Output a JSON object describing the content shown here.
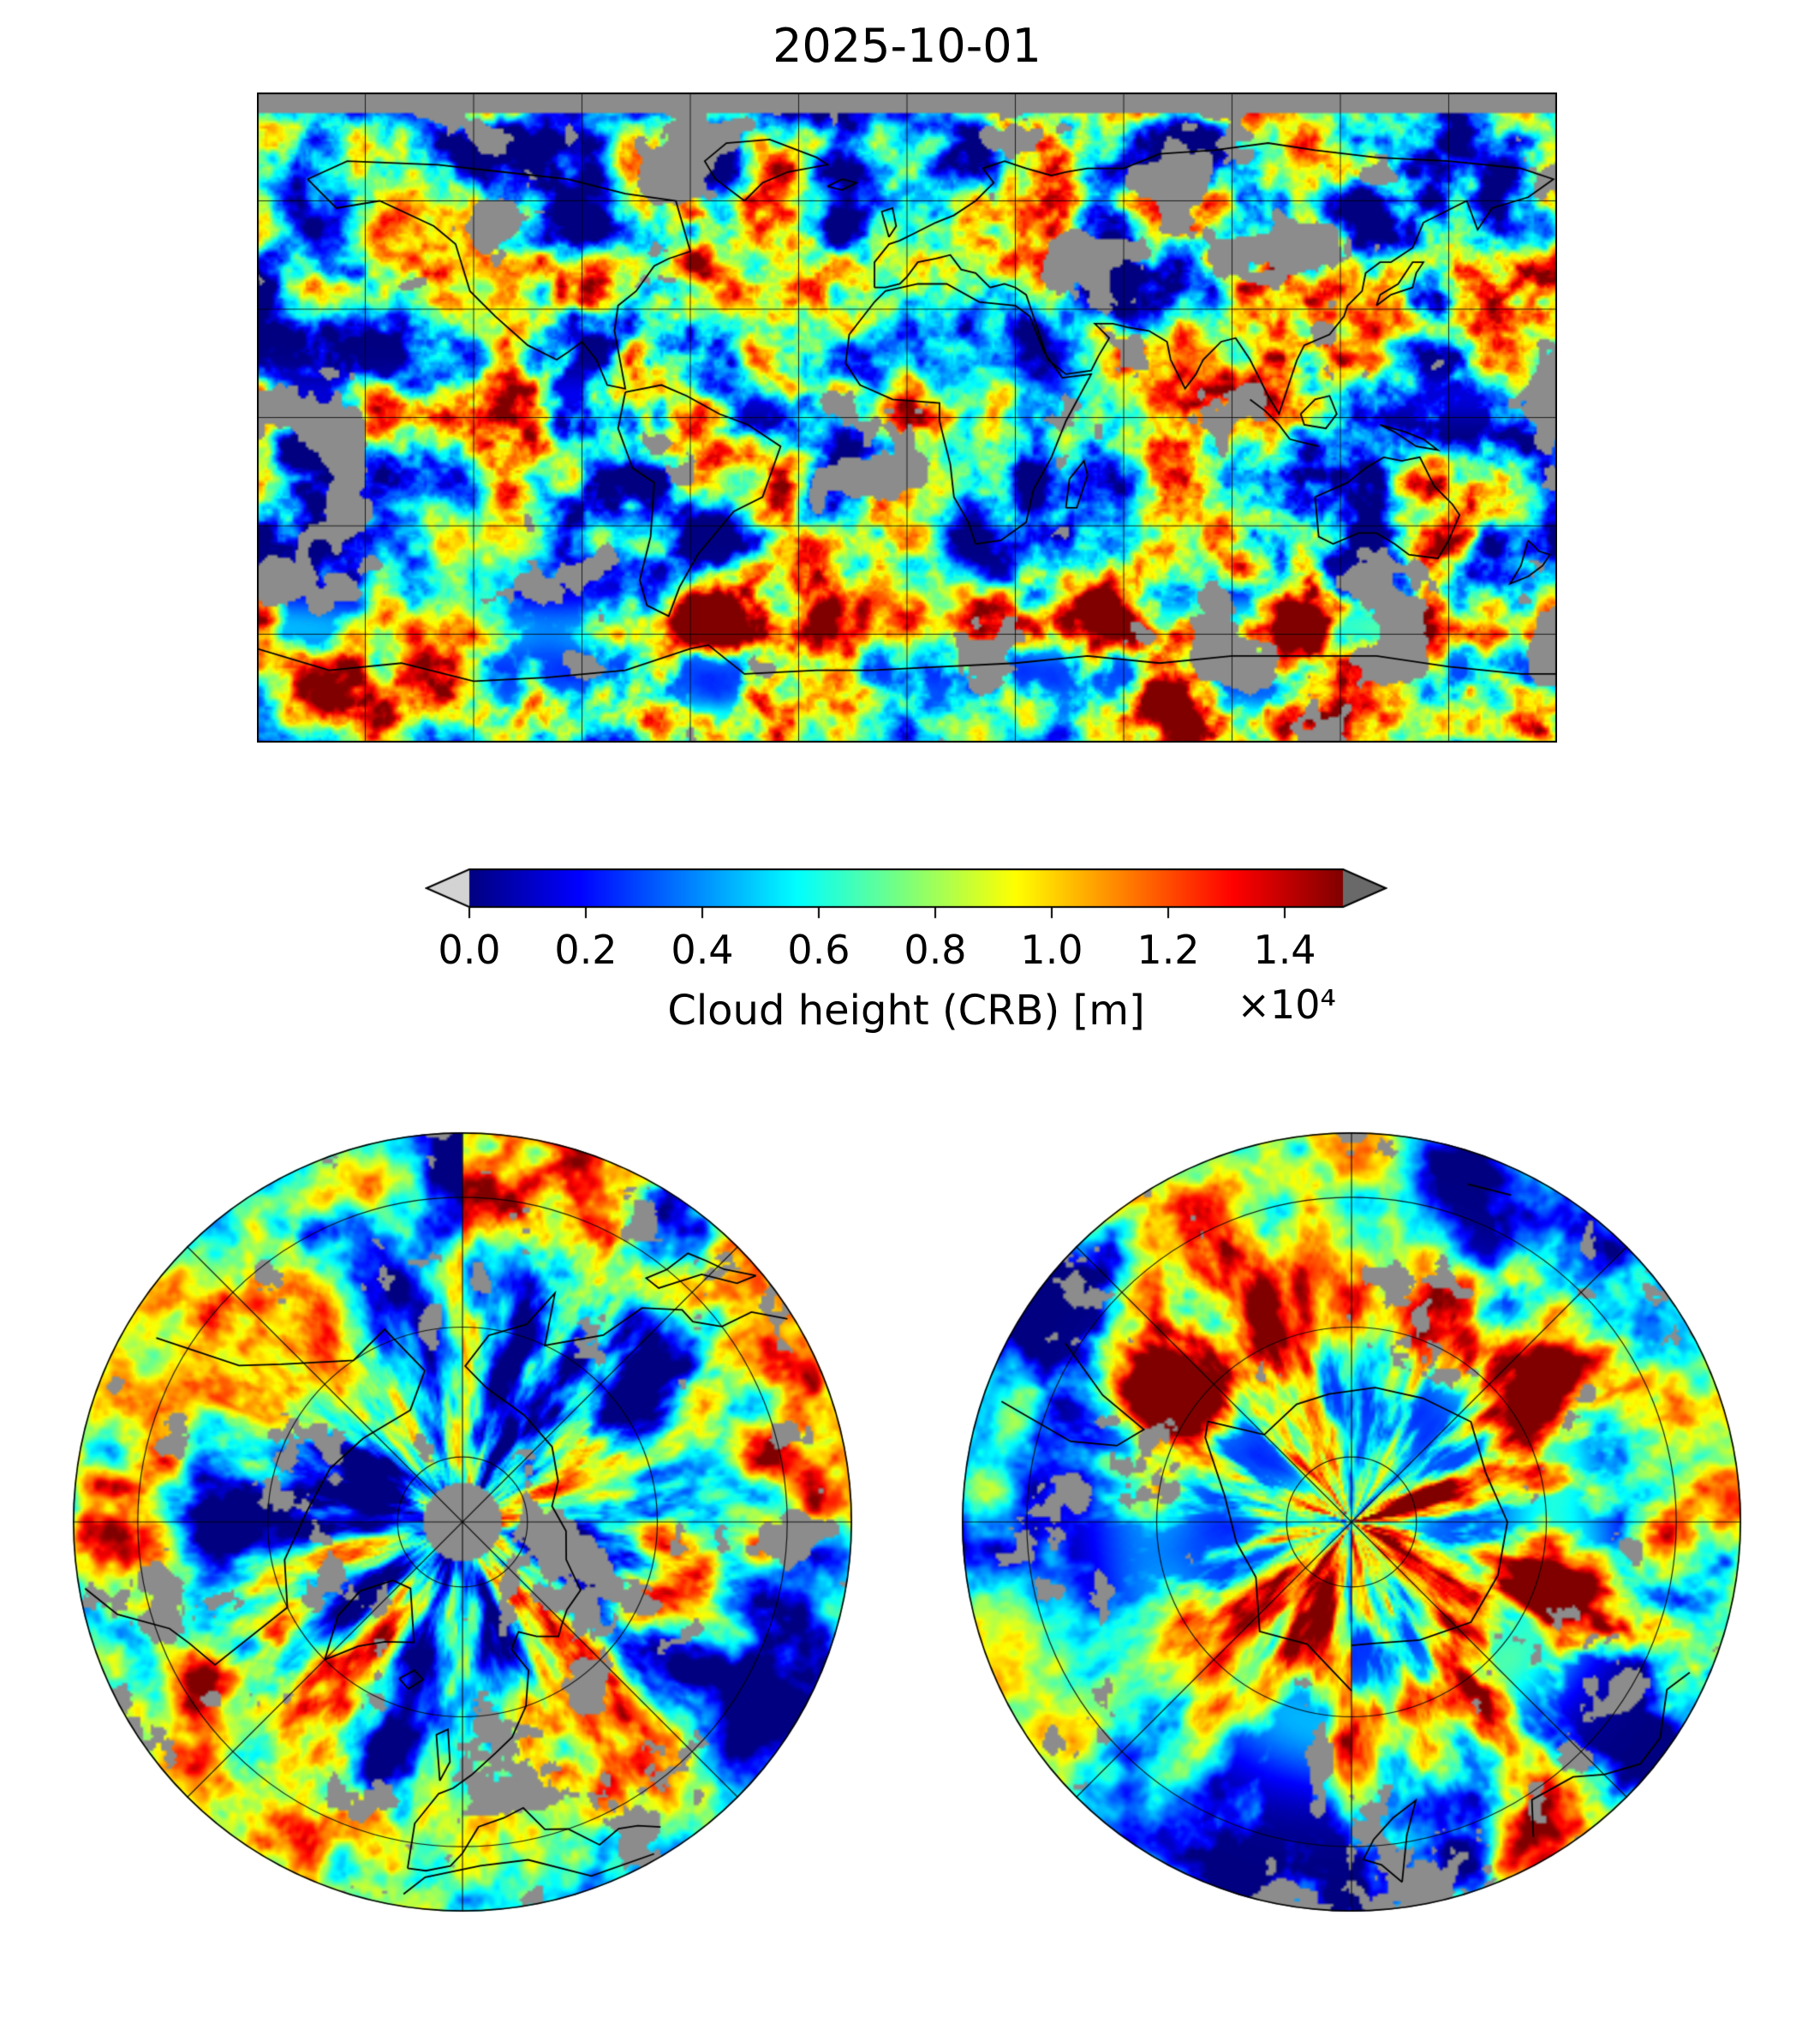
{
  "title": "2025-10-01",
  "chart_data": {
    "type": "heatmap",
    "title": "2025-10-01",
    "variable": "Cloud height (CRB)",
    "units": "m",
    "scale_factor": 10000,
    "value_range": [
      0,
      15000
    ],
    "missing_color": "#8c8c8c",
    "grid": true,
    "colormap": {
      "name": "jet",
      "stops": [
        [
          0,
          "#000080"
        ],
        [
          0.125,
          "#0000ff"
        ],
        [
          0.375,
          "#00ffff"
        ],
        [
          0.5,
          "#7dff7a"
        ],
        [
          0.625,
          "#ffff00"
        ],
        [
          0.875,
          "#ff0000"
        ],
        [
          1,
          "#800000"
        ]
      ]
    },
    "colorbar": {
      "label": "Cloud height (CRB) [m]",
      "ticks": [
        0.0,
        0.2,
        0.4,
        0.6,
        0.8,
        1.0,
        1.2,
        1.4
      ],
      "tick_labels": [
        "0.0",
        "0.2",
        "0.4",
        "0.6",
        "0.8",
        "1.0",
        "1.2",
        "1.4"
      ],
      "offset_text": "×10⁴",
      "extend": "both",
      "under_color": "#d3d3d3",
      "over_color": "#696969"
    },
    "panels": [
      {
        "name": "global-map",
        "projection": "equirectangular",
        "lon_range": [
          -180,
          180
        ],
        "lat_range": [
          -90,
          90
        ],
        "grid_spacing_deg": 30
      },
      {
        "name": "north-polar-map",
        "projection": "north-polar-azimuthal",
        "lat_edge": 30,
        "grid_lat_circles": [
          40,
          60,
          80
        ],
        "grid_lon_spokes_deg": 45
      },
      {
        "name": "south-polar-map",
        "projection": "south-polar-azimuthal",
        "lat_edge": -30,
        "grid_lat_circles": [
          -40,
          -60,
          -80
        ],
        "grid_lon_spokes_deg": 45
      }
    ],
    "basemap": {
      "coastlines": [
        [
          [
            -166,
            66
          ],
          [
            -158,
            58
          ],
          [
            -146,
            60
          ],
          [
            -131,
            53
          ],
          [
            -125,
            48
          ],
          [
            -121,
            35
          ],
          [
            -114,
            28
          ],
          [
            -105,
            20
          ],
          [
            -97,
            16
          ],
          [
            -94,
            18
          ],
          [
            -90,
            21
          ],
          [
            -86,
            16
          ],
          [
            -83,
            9
          ],
          [
            -78,
            8
          ],
          [
            -81,
            24
          ],
          [
            -80,
            31
          ],
          [
            -75,
            35
          ],
          [
            -70,
            42
          ],
          [
            -66,
            44
          ],
          [
            -60,
            46
          ],
          [
            -64,
            60
          ],
          [
            -78,
            62
          ],
          [
            -94,
            66
          ],
          [
            -112,
            68
          ],
          [
            -130,
            70
          ],
          [
            -155,
            71
          ],
          [
            -166,
            66
          ]
        ],
        [
          [
            -78,
            7
          ],
          [
            -80,
            -3
          ],
          [
            -76,
            -14
          ],
          [
            -70,
            -18
          ],
          [
            -71,
            -33
          ],
          [
            -74,
            -45
          ],
          [
            -72,
            -52
          ],
          [
            -66,
            -55
          ],
          [
            -63,
            -47
          ],
          [
            -58,
            -38
          ],
          [
            -48,
            -26
          ],
          [
            -40,
            -22
          ],
          [
            -35,
            -8
          ],
          [
            -44,
            -2
          ],
          [
            -52,
            1
          ],
          [
            -61,
            6
          ],
          [
            -68,
            9
          ],
          [
            -78,
            7
          ]
        ],
        [
          [
            -45,
            60
          ],
          [
            -53,
            66
          ],
          [
            -56,
            71
          ],
          [
            -50,
            76
          ],
          [
            -38,
            77
          ],
          [
            -25,
            72
          ],
          [
            -22,
            70
          ],
          [
            -33,
            68
          ],
          [
            -40,
            65
          ],
          [
            -45,
            60
          ]
        ],
        [
          [
            -17,
            15
          ],
          [
            -16,
            23
          ],
          [
            -9,
            32
          ],
          [
            -6,
            35
          ],
          [
            3,
            37
          ],
          [
            11,
            37
          ],
          [
            20,
            32
          ],
          [
            30,
            31
          ],
          [
            34,
            28
          ],
          [
            38,
            18
          ],
          [
            43,
            11
          ],
          [
            51,
            12
          ],
          [
            44,
            -1
          ],
          [
            40,
            -11
          ],
          [
            35,
            -20
          ],
          [
            33,
            -29
          ],
          [
            26,
            -34
          ],
          [
            19,
            -35
          ],
          [
            17,
            -29
          ],
          [
            13,
            -22
          ],
          [
            12,
            -13
          ],
          [
            9,
            -1
          ],
          [
            9,
            4
          ],
          [
            -4,
            5
          ],
          [
            -13,
            9
          ],
          [
            -17,
            15
          ]
        ],
        [
          [
            -9,
            36
          ],
          [
            -9,
            43
          ],
          [
            -5,
            48
          ],
          [
            -2,
            49
          ],
          [
            2,
            51
          ],
          [
            8,
            54
          ],
          [
            13,
            56
          ],
          [
            19,
            60
          ],
          [
            24,
            65
          ],
          [
            21,
            69
          ],
          [
            27,
            71
          ],
          [
            33,
            69
          ],
          [
            40,
            67
          ],
          [
            44,
            68
          ],
          [
            50,
            69
          ],
          [
            60,
            69
          ],
          [
            70,
            73
          ],
          [
            85,
            74
          ],
          [
            100,
            76
          ],
          [
            113,
            74
          ],
          [
            130,
            72
          ],
          [
            150,
            71
          ],
          [
            170,
            69
          ],
          [
            179,
            66
          ],
          [
            172,
            61
          ],
          [
            162,
            58
          ],
          [
            158,
            52
          ],
          [
            155,
            60
          ],
          [
            143,
            54
          ],
          [
            140,
            47
          ],
          [
            134,
            43
          ],
          [
            131,
            43
          ],
          [
            127,
            40
          ],
          [
            126,
            35
          ],
          [
            122,
            31
          ],
          [
            121,
            28
          ],
          [
            117,
            23
          ],
          [
            110,
            20
          ],
          [
            108,
            16
          ],
          [
            106,
            10
          ],
          [
            103,
            1
          ],
          [
            100,
            6
          ],
          [
            98,
            10
          ],
          [
            95,
            16
          ],
          [
            91,
            22
          ],
          [
            87,
            21
          ],
          [
            82,
            16
          ],
          [
            80,
            12
          ],
          [
            77,
            8
          ],
          [
            73,
            16
          ],
          [
            72,
            21
          ],
          [
            67,
            24
          ],
          [
            61,
            25
          ],
          [
            57,
            26
          ],
          [
            52,
            26
          ],
          [
            56,
            22
          ],
          [
            53,
            17
          ],
          [
            51,
            13
          ],
          [
            44,
            12
          ],
          [
            39,
            16
          ],
          [
            35,
            28
          ],
          [
            33,
            34
          ],
          [
            30,
            36
          ],
          [
            27,
            37
          ],
          [
            23,
            36
          ],
          [
            19,
            40
          ],
          [
            15,
            41
          ],
          [
            12,
            45
          ],
          [
            8,
            44
          ],
          [
            3,
            43
          ],
          [
            0,
            39
          ],
          [
            -2,
            37
          ],
          [
            -6,
            36
          ],
          [
            -9,
            36
          ]
        ],
        [
          [
            113,
            -22
          ],
          [
            114,
            -33
          ],
          [
            118,
            -35
          ],
          [
            125,
            -32
          ],
          [
            130,
            -32
          ],
          [
            135,
            -35
          ],
          [
            139,
            -38
          ],
          [
            147,
            -39
          ],
          [
            150,
            -34
          ],
          [
            153,
            -27
          ],
          [
            151,
            -24
          ],
          [
            146,
            -19
          ],
          [
            142,
            -11
          ],
          [
            137,
            -12
          ],
          [
            132,
            -11
          ],
          [
            127,
            -14
          ],
          [
            122,
            -18
          ],
          [
            113,
            -22
          ]
        ],
        [
          [
            -180,
            -64
          ],
          [
            -160,
            -70
          ],
          [
            -140,
            -68
          ],
          [
            -120,
            -73
          ],
          [
            -100,
            -72
          ],
          [
            -78,
            -70
          ],
          [
            -60,
            -64
          ],
          [
            -55,
            -63
          ],
          [
            -45,
            -71
          ],
          [
            -25,
            -70
          ],
          [
            -10,
            -70
          ],
          [
            10,
            -69
          ],
          [
            30,
            -68
          ],
          [
            50,
            -66
          ],
          [
            70,
            -68
          ],
          [
            90,
            -66
          ],
          [
            110,
            -66
          ],
          [
            130,
            -66
          ],
          [
            150,
            -69
          ],
          [
            170,
            -71
          ],
          [
            180,
            -71
          ]
        ],
        [
          [
            -5,
            50
          ],
          [
            -3,
            53
          ],
          [
            -4,
            58
          ],
          [
            -7,
            57
          ],
          [
            -5,
            50
          ]
        ],
        [
          [
            130,
            31
          ],
          [
            134,
            34
          ],
          [
            137,
            35
          ],
          [
            140,
            36
          ],
          [
            141,
            40
          ],
          [
            143,
            43
          ],
          [
            140,
            43
          ],
          [
            136,
            37
          ],
          [
            131,
            34
          ],
          [
            130,
            31
          ]
        ],
        [
          [
            44,
            -25
          ],
          [
            47,
            -25
          ],
          [
            50,
            -16
          ],
          [
            49,
            -12
          ],
          [
            45,
            -17
          ],
          [
            44,
            -25
          ]
        ],
        [
          [
            95,
            5
          ],
          [
            99,
            2
          ],
          [
            103,
            -2
          ],
          [
            106,
            -6
          ],
          [
            110,
            -7
          ],
          [
            114,
            -8
          ]
        ],
        [
          [
            109,
            1
          ],
          [
            113,
            5
          ],
          [
            117,
            6
          ],
          [
            119,
            1
          ],
          [
            116,
            -3
          ],
          [
            110,
            -2
          ],
          [
            109,
            1
          ]
        ],
        [
          [
            131,
            -2
          ],
          [
            138,
            -4
          ],
          [
            143,
            -6
          ],
          [
            147,
            -9
          ],
          [
            141,
            -8
          ],
          [
            135,
            -4
          ],
          [
            131,
            -2
          ]
        ],
        [
          [
            -22,
            64
          ],
          [
            -18,
            66
          ],
          [
            -14,
            65
          ],
          [
            -18,
            63
          ],
          [
            -22,
            64
          ]
        ],
        [
          [
            172,
            -34
          ],
          [
            175,
            -37
          ],
          [
            178,
            -38
          ],
          [
            176,
            -41
          ],
          [
            172,
            -44
          ],
          [
            167,
            -46
          ],
          [
            170,
            -41
          ],
          [
            172,
            -34
          ]
        ]
      ]
    }
  }
}
